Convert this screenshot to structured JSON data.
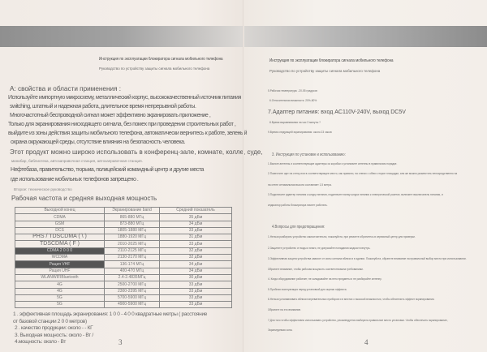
{
  "left": {
    "title": "Инструкция по эксплуатации блокиратора сигнала мобильного телефона",
    "subtitle": "Руководство по устройству защиты сигнала мобильного телефона",
    "heading": "A: свойства и области применения :",
    "body": [
      "Используйте импортную микросхему, металлический корпус, высококачественный источник питания",
      "switching, штатный и надежная работа, длительное время непрерывной работы.",
      "Многочастотный беспроводной сигнал может эффективно экранировать приложение ,",
      "Только для экранирования нисходящего сигнала, без помех при проведении строительных работ ,",
      "выйдите из зоны действия защиты мобильного телефона, автоматически вернитесь к работе, зеленый",
      "охрана окружающей среды, отсутствие влияния на безопасность человека."
    ],
    "usage_line": "Этот продукт можно широко использовать в конференц-зале, комнате, колле, суде,",
    "usage_small": "минибар, библиотека, автозаправочная станция, автозаправочная станция.",
    "usage_2": "Нефтебаза, правительство, тюрьма, полицейский командный центр и другие места",
    "usage_3": "где использование мобильных телефонов запрещено .",
    "second": "Второе: техническое руководство",
    "table_title": "Рабочая частота и средняя выходная мощность",
    "table": {
      "headers": [
        "Выходной конец",
        "Экранирование band",
        "Средний показатель"
      ],
      "rows": [
        [
          "CDMA",
          "865-880 МГц",
          "35 дБм"
        ],
        [
          "GSM",
          "873-880 МГц",
          "34 дБм"
        ],
        [
          "DCS",
          "1805-1880 МГц",
          "33 дБм"
        ],
        [
          "PHS / TDSCDMA ( \\ )",
          "1880-1920 МГц",
          "31 дБм"
        ],
        [
          "TDSCDMA ( F )",
          "2010-2025 МГц",
          "33 дБм"
        ],
        [
          "CDMA 2 0 0 0",
          "2110-2125 МГц",
          "32 дБм"
        ],
        [
          "WCDMA",
          "2130-2170 МГц",
          "32 дБм"
        ],
        [
          "Рация VHF",
          "136-174 МГц",
          "34 дБм"
        ],
        [
          "Рация UHF",
          "400-470 МГц",
          "34 дБм"
        ],
        [
          "WLANWIFIBluetooth",
          "2.4-2.4835МГц",
          "30 дБм"
        ],
        [
          "4G",
          "2500-2700 МГц",
          "33 дБм"
        ],
        [
          "4G",
          "2300-2395 МГц",
          "33 дБм"
        ],
        [
          "5G",
          "5700-5900 МГц",
          "33 дБм"
        ],
        [
          "5G",
          "4900-5900 МГц",
          "33 дБм"
        ]
      ]
    },
    "notes": [
      "1 . эффективная площадь экранирования: 1 0 0 - 4 0 0 квадратные метры ( расстояние",
      "от базовой станции 2 0 0 метров)",
      "2 . качество продукции: около - - КГ",
      "3. Выходная мощность: около - Вт /",
      "4.мощность: около - Вт"
    ],
    "page_number": "3"
  },
  "right": {
    "title": "Инструкция по эксплуатации блокиратора сигнала мобильного телефона",
    "subtitle": "Руководство по устройству защиты сигнала мобильного телефона",
    "specs": [
      "5.Рабочая температура: -20-55 градусов",
      "6.Относительная влажность: 20%-80%",
      "7.Адаптер питания: вход AC110V-240V, выход DC5V",
      "8.Время выравнивания на час 3 минуты ?",
      "9.Время следующей экранирования: около 23 часов"
    ],
    "section3": "3. Инструкция по установке и использованию:",
    "section3_lines": [
      "1.Выньте антенны и соответствующие адаптеры из коробки и установите антенны в правильном порядке.",
      "2.Поместите щит на стену или в соответствующее место, как правило, на стенах с обеих сторон площадки, или же можно разместить непосредственно на",
      "на стене оптимальная высота составляет 1,5 метра.",
      "3.Подключите адаптер питания к шнуру питания, подключите вилку шнура питания к электрической розетке, включите выключатель питания, и",
      "индикатор работы блокиратора начнет работать."
    ],
    "section4": "4.Вопросы для предотвращения:",
    "section4_lines": [
      "1.Нельзя разбирать устройство самостоятельно, пожалуйста, при ремонте обратитесь в сервисный центр для проверки.",
      "2.Защитите устройство от воды и влаги, не допускайте попадания жидкости внутрь.",
      "3.Эффективная защита устройства зависит от силы сигнала вблизи и в здании. Пожалуйста, обратите внимание на правильный выбор места при использовании.",
      "Обратите внимание, чтобы рабочая мощность соответствовала требованиям.",
      "4. Когда оборудование работает, не складывайте на него предметы и не разбирайте антенну.",
      "5.Пробная эксплуатация перед установкой для оценки эффекта.",
      "6.Нельзя устанавливать вблизи нагревательных приборов и в местах с высокой влажностью, чтобы обеспечить эффект экранирования.",
      "Обратите на это внимание.",
      "7.Для того чтобы эффективно использовать устройство, рекомендуется выбирать правильное место установки. Чтобы обеспечить экранирование,",
      "Экранируемая зона."
    ],
    "page_number": "4"
  },
  "colors": {
    "paper": "#f1ebe6",
    "band": "#9a9a9a",
    "text": "#555555"
  }
}
